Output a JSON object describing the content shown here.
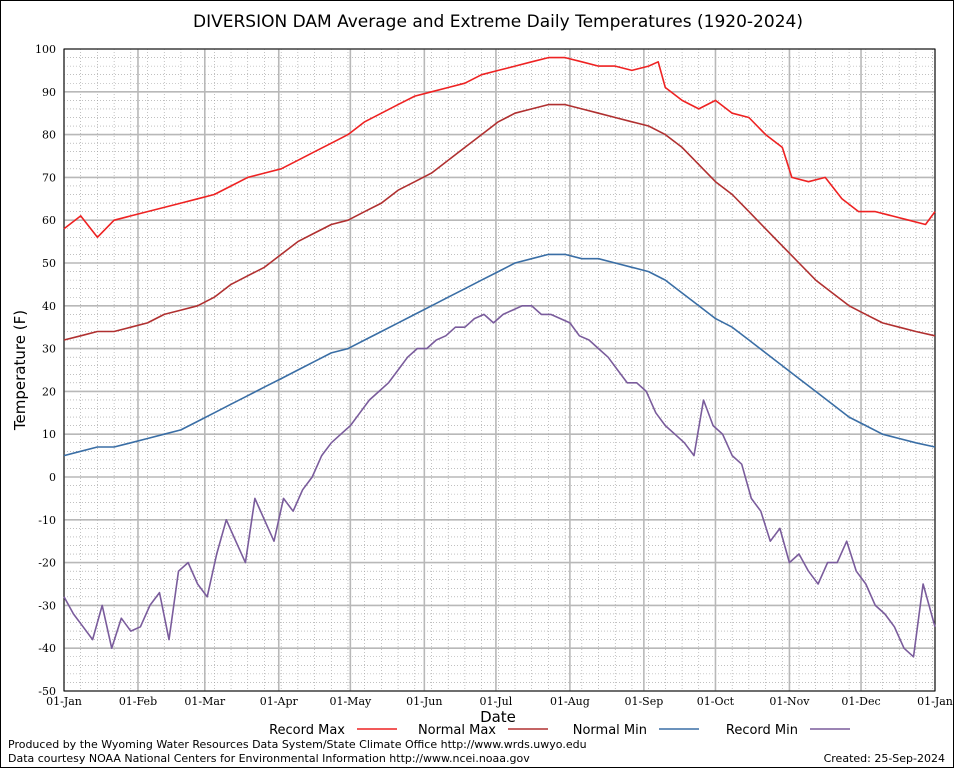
{
  "chart_data": {
    "type": "line",
    "title": "DIVERSION DAM Average and Extreme Daily Temperatures (1920-2024)",
    "xlabel": "Date",
    "ylabel": "Temperature (F)",
    "ylim": [
      -50,
      100
    ],
    "yticks": [
      100,
      90,
      80,
      70,
      60,
      50,
      40,
      30,
      20,
      10,
      0,
      -10,
      -20,
      -30,
      -40,
      -50
    ],
    "xlim": [
      1,
      366
    ],
    "xticks": [
      {
        "label": "01-Jan",
        "day": 1
      },
      {
        "label": "01-Feb",
        "day": 32
      },
      {
        "label": "01-Mar",
        "day": 60
      },
      {
        "label": "01-Apr",
        "day": 91
      },
      {
        "label": "01-May",
        "day": 121
      },
      {
        "label": "01-Jun",
        "day": 152
      },
      {
        "label": "01-Jul",
        "day": 182
      },
      {
        "label": "01-Aug",
        "day": 213
      },
      {
        "label": "01-Sep",
        "day": 244
      },
      {
        "label": "01-Oct",
        "day": 274
      },
      {
        "label": "01-Nov",
        "day": 305
      },
      {
        "label": "01-Dec",
        "day": 335
      },
      {
        "label": "01-Jan",
        "day": 366
      }
    ],
    "grid": true,
    "legend_position": "bottom",
    "series": [
      {
        "name": "Record Max",
        "color": "#ee2222",
        "x": [
          1,
          8,
          15,
          22,
          29,
          36,
          43,
          50,
          57,
          64,
          71,
          78,
          85,
          92,
          99,
          106,
          113,
          120,
          127,
          134,
          141,
          148,
          155,
          162,
          169,
          176,
          183,
          190,
          197,
          204,
          211,
          218,
          225,
          232,
          239,
          246,
          250,
          253,
          260,
          267,
          274,
          281,
          288,
          295,
          302,
          306,
          313,
          320,
          327,
          334,
          341,
          348,
          355,
          362,
          366
        ],
        "y": [
          58,
          61,
          56,
          60,
          61,
          62,
          63,
          64,
          65,
          66,
          68,
          70,
          71,
          72,
          74,
          76,
          78,
          80,
          83,
          85,
          87,
          89,
          90,
          91,
          92,
          94,
          95,
          96,
          97,
          98,
          98,
          97,
          96,
          96,
          95,
          96,
          97,
          91,
          88,
          86,
          88,
          85,
          84,
          80,
          77,
          70,
          69,
          70,
          65,
          62,
          62,
          61,
          60,
          59,
          62
        ]
      },
      {
        "name": "Normal Max",
        "color": "#b03030",
        "x": [
          1,
          8,
          15,
          22,
          29,
          36,
          43,
          50,
          57,
          64,
          71,
          78,
          85,
          92,
          99,
          106,
          113,
          120,
          127,
          134,
          141,
          148,
          155,
          162,
          169,
          176,
          183,
          190,
          197,
          204,
          211,
          218,
          225,
          232,
          239,
          246,
          253,
          260,
          267,
          274,
          281,
          288,
          295,
          302,
          309,
          316,
          323,
          330,
          337,
          344,
          351,
          358,
          366
        ],
        "y": [
          32,
          33,
          34,
          34,
          35,
          36,
          38,
          39,
          40,
          42,
          45,
          47,
          49,
          52,
          55,
          57,
          59,
          60,
          62,
          64,
          67,
          69,
          71,
          74,
          77,
          80,
          83,
          85,
          86,
          87,
          87,
          86,
          85,
          84,
          83,
          82,
          80,
          77,
          73,
          69,
          66,
          62,
          58,
          54,
          50,
          46,
          43,
          40,
          38,
          36,
          35,
          34,
          33
        ]
      },
      {
        "name": "Normal Min",
        "color": "#3a6ea5",
        "x": [
          1,
          8,
          15,
          22,
          29,
          36,
          43,
          50,
          57,
          64,
          71,
          78,
          85,
          92,
          99,
          106,
          113,
          120,
          127,
          134,
          141,
          148,
          155,
          162,
          169,
          176,
          183,
          190,
          197,
          204,
          211,
          218,
          225,
          232,
          239,
          246,
          253,
          260,
          267,
          274,
          281,
          288,
          295,
          302,
          309,
          316,
          323,
          330,
          337,
          344,
          351,
          358,
          366
        ],
        "y": [
          5,
          6,
          7,
          7,
          8,
          9,
          10,
          11,
          13,
          15,
          17,
          19,
          21,
          23,
          25,
          27,
          29,
          30,
          32,
          34,
          36,
          38,
          40,
          42,
          44,
          46,
          48,
          50,
          51,
          52,
          52,
          51,
          51,
          50,
          49,
          48,
          46,
          43,
          40,
          37,
          35,
          32,
          29,
          26,
          23,
          20,
          17,
          14,
          12,
          10,
          9,
          8,
          7
        ]
      },
      {
        "name": "Record Min",
        "color": "#7a5c9c",
        "x": [
          1,
          5,
          9,
          13,
          17,
          21,
          25,
          29,
          33,
          37,
          41,
          45,
          49,
          53,
          57,
          61,
          65,
          69,
          73,
          77,
          81,
          85,
          89,
          93,
          97,
          101,
          105,
          109,
          113,
          117,
          121,
          125,
          129,
          133,
          137,
          141,
          145,
          149,
          153,
          157,
          161,
          165,
          169,
          173,
          177,
          181,
          185,
          189,
          193,
          197,
          201,
          205,
          209,
          213,
          217,
          221,
          225,
          229,
          233,
          237,
          241,
          245,
          249,
          253,
          257,
          261,
          265,
          269,
          273,
          277,
          281,
          285,
          289,
          293,
          297,
          301,
          305,
          309,
          313,
          317,
          321,
          325,
          329,
          333,
          337,
          341,
          345,
          349,
          353,
          357,
          361,
          366
        ],
        "y": [
          -28,
          -32,
          -35,
          -38,
          -30,
          -40,
          -33,
          -36,
          -35,
          -30,
          -27,
          -38,
          -22,
          -20,
          -25,
          -28,
          -18,
          -10,
          -15,
          -20,
          -5,
          -10,
          -15,
          -5,
          -8,
          -3,
          0,
          5,
          8,
          10,
          12,
          15,
          18,
          20,
          22,
          25,
          28,
          30,
          30,
          32,
          33,
          35,
          35,
          37,
          38,
          36,
          38,
          39,
          40,
          40,
          38,
          38,
          37,
          36,
          33,
          32,
          30,
          28,
          25,
          22,
          22,
          20,
          15,
          12,
          10,
          8,
          5,
          18,
          12,
          10,
          5,
          3,
          -5,
          -8,
          -15,
          -12,
          -20,
          -18,
          -22,
          -25,
          -20,
          -20,
          -15,
          -22,
          -25,
          -30,
          -32,
          -35,
          -40,
          -42,
          -25,
          -35
        ]
      }
    ]
  },
  "footer": {
    "left_line1": "Produced by the Wyoming Water Resources Data System/State Climate Office http://www.wrds.uwyo.edu",
    "left_line2": "Data courtesy NOAA National Centers for Environmental Information http://www.ncei.noaa.gov",
    "created": "Created:  25-Sep-2024"
  }
}
